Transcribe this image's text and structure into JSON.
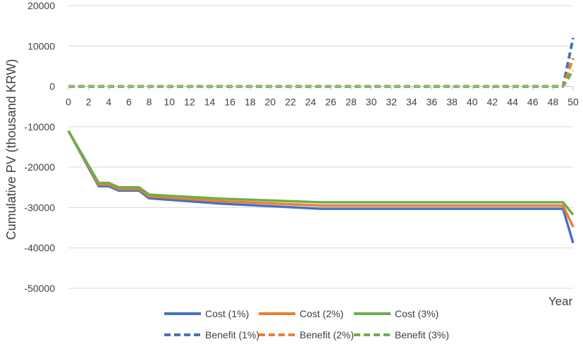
{
  "chart_data": {
    "type": "line",
    "title": "",
    "xlabel": "Year",
    "ylabel": "Cumulative PV (thousand KRW)",
    "xlim": [
      0,
      50
    ],
    "ylim": [
      -50000,
      20000
    ],
    "x_ticks": [
      0,
      2,
      4,
      6,
      8,
      10,
      12,
      14,
      16,
      18,
      20,
      22,
      24,
      26,
      28,
      30,
      32,
      34,
      36,
      38,
      40,
      42,
      44,
      46,
      48,
      50
    ],
    "y_ticks": [
      20000,
      10000,
      0,
      -10000,
      -20000,
      -30000,
      -40000,
      -50000
    ],
    "y_tick_labels": [
      "20000",
      "10000",
      "0",
      "-10000",
      "-20000",
      "-30000",
      "-40000",
      "-50000"
    ],
    "grid": "horizontal",
    "legend_position": "bottom",
    "colors": {
      "blue": "#4472C4",
      "orange": "#ED7D31",
      "green": "#70AD47",
      "grid": "#D9D9D9",
      "axis": "#BFBFBF"
    },
    "series": [
      {
        "name": "Cost (1%)",
        "style": "solid",
        "color": "#4472C4",
        "x": [
          0,
          3,
          4,
          5,
          7,
          8,
          15,
          25,
          49,
          50
        ],
        "y": [
          -11000,
          -24700,
          -24700,
          -25800,
          -25800,
          -27700,
          -29000,
          -30300,
          -30300,
          -38800
        ]
      },
      {
        "name": "Cost (2%)",
        "style": "solid",
        "color": "#ED7D31",
        "x": [
          0,
          3,
          4,
          5,
          7,
          8,
          15,
          25,
          49,
          50
        ],
        "y": [
          -11000,
          -24300,
          -24300,
          -25400,
          -25400,
          -27200,
          -28400,
          -29500,
          -29500,
          -34800
        ]
      },
      {
        "name": "Cost (3%)",
        "style": "solid",
        "color": "#70AD47",
        "x": [
          0,
          3,
          4,
          5,
          7,
          8,
          15,
          25,
          49,
          50
        ],
        "y": [
          -11000,
          -23900,
          -23900,
          -25000,
          -25000,
          -26800,
          -27800,
          -28700,
          -28700,
          -31800
        ]
      },
      {
        "name": "Benefit (1%)",
        "style": "dashed",
        "color": "#4472C4",
        "x": [
          0,
          49,
          50
        ],
        "y": [
          0,
          0,
          12000
        ]
      },
      {
        "name": "Benefit (2%)",
        "style": "dashed",
        "color": "#ED7D31",
        "x": [
          0,
          49,
          50
        ],
        "y": [
          0,
          0,
          7000
        ]
      },
      {
        "name": "Benefit (3%)",
        "style": "dashed",
        "color": "#70AD47",
        "x": [
          0,
          49,
          50
        ],
        "y": [
          0,
          0,
          4000
        ]
      }
    ]
  }
}
